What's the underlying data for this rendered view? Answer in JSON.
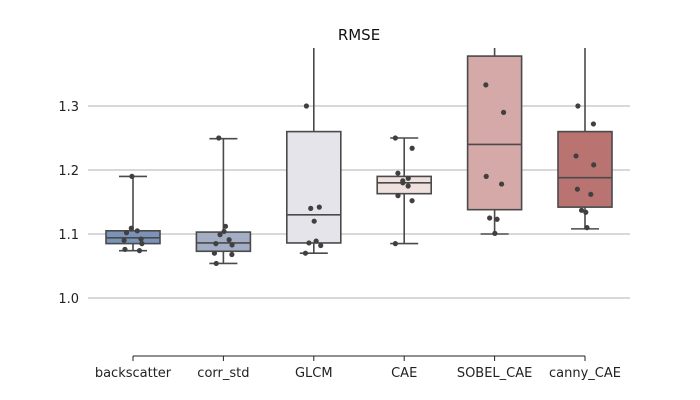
{
  "chart_data": {
    "type": "boxplot",
    "title": "RMSE",
    "xlabel": "",
    "ylabel": "",
    "ylim": [
      0.9,
      1.39
    ],
    "yticks": [
      1.0,
      1.1,
      1.2,
      1.3
    ],
    "ytick_labels": [
      "1.0",
      "1.1",
      "1.2",
      "1.3"
    ],
    "grid": "horizontal",
    "categories": [
      "backscatter",
      "corr_std",
      "GLCM",
      "CAE",
      "SOBEL_CAE",
      "canny_CAE"
    ],
    "boxes": [
      {
        "name": "backscatter",
        "q1": 1.085,
        "median": 1.094,
        "q3": 1.105,
        "whisker_low": 1.074,
        "whisker_high": 1.19,
        "color": "#7b93b6",
        "points": [
          1.19,
          1.109,
          1.105,
          1.102,
          1.092,
          1.09,
          1.085,
          1.076,
          1.074
        ]
      },
      {
        "name": "corr_std",
        "q1": 1.073,
        "median": 1.086,
        "q3": 1.103,
        "whisker_low": 1.054,
        "whisker_high": 1.249,
        "color": "#a3aec4",
        "points": [
          1.25,
          1.112,
          1.104,
          1.099,
          1.091,
          1.085,
          1.083,
          1.07,
          1.068,
          1.054
        ]
      },
      {
        "name": "GLCM",
        "q1": 1.086,
        "median": 1.13,
        "q3": 1.26,
        "whisker_low": 1.07,
        "whisker_high": 1.41,
        "color": "#e5e4ea",
        "points": [
          1.3,
          1.142,
          1.14,
          1.12,
          1.089,
          1.086,
          1.082,
          1.07
        ]
      },
      {
        "name": "CAE",
        "q1": 1.163,
        "median": 1.18,
        "q3": 1.19,
        "whisker_low": 1.085,
        "whisker_high": 1.25,
        "color": "#eee1de",
        "points": [
          1.25,
          1.234,
          1.195,
          1.187,
          1.183,
          1.18,
          1.175,
          1.16,
          1.152,
          1.085
        ]
      },
      {
        "name": "SOBEL_CAE",
        "q1": 1.138,
        "median": 1.24,
        "q3": 1.378,
        "whisker_low": 1.1,
        "whisker_high": 1.41,
        "color": "#d4a9a8",
        "points": [
          1.333,
          1.29,
          1.19,
          1.178,
          1.125,
          1.123,
          1.101
        ]
      },
      {
        "name": "canny_CAE",
        "q1": 1.142,
        "median": 1.188,
        "q3": 1.26,
        "whisker_low": 1.108,
        "whisker_high": 1.41,
        "color": "#b97371",
        "points": [
          1.3,
          1.272,
          1.222,
          1.208,
          1.17,
          1.162,
          1.137,
          1.134,
          1.11
        ]
      }
    ]
  }
}
